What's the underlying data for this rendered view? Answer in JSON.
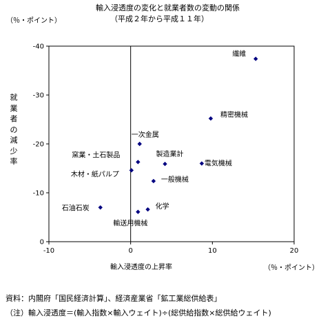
{
  "chart_data": {
    "type": "scatter",
    "title": "輸入浸透度の変化と就業者数の変動の関係",
    "subtitle": "（平成２年から平成１１年）",
    "xlabel": "輸入浸透度の上昇率",
    "ylabel": "就業者の減少率",
    "x_unit": "（％・ポイント）",
    "y_unit": "（％・ポイント）",
    "xlim": [
      -10,
      20
    ],
    "ylim": [
      0,
      -40
    ],
    "x_ticks": [
      -10,
      0,
      10,
      20
    ],
    "y_ticks": [
      -40,
      -30,
      -20,
      -10,
      0
    ],
    "y_inverted": true,
    "grid": false,
    "marker_color": "#000080",
    "points": [
      {
        "label": "繊維",
        "x": 15.3,
        "y": -37.4
      },
      {
        "label": "精密機械",
        "x": 9.8,
        "y": -25.2
      },
      {
        "label": "一次金属",
        "x": 1.1,
        "y": -20.0
      },
      {
        "label": "窯業・土石製品",
        "x": 0.9,
        "y": -16.3
      },
      {
        "label": "製造業計",
        "x": 4.2,
        "y": -15.9
      },
      {
        "label": "電気機械",
        "x": 8.7,
        "y": -16.0
      },
      {
        "label": "木材・紙パルプ",
        "x": 0.1,
        "y": -14.6
      },
      {
        "label": "一般機械",
        "x": 2.8,
        "y": -12.4
      },
      {
        "label": "石油石炭",
        "x": -3.7,
        "y": -7.0
      },
      {
        "label": "化学",
        "x": 2.1,
        "y": -6.6
      },
      {
        "label": "輸送用機械",
        "x": 0.9,
        "y": -6.1
      }
    ]
  },
  "notes": {
    "source": "資料：内閣府「国民経済計算」、経済産業省「鉱工業総供給表」",
    "definition": "（注）輸入浸透度＝(輸入指数×輸入ウェイト)÷(総供給指数×総供給ウェイト)"
  }
}
